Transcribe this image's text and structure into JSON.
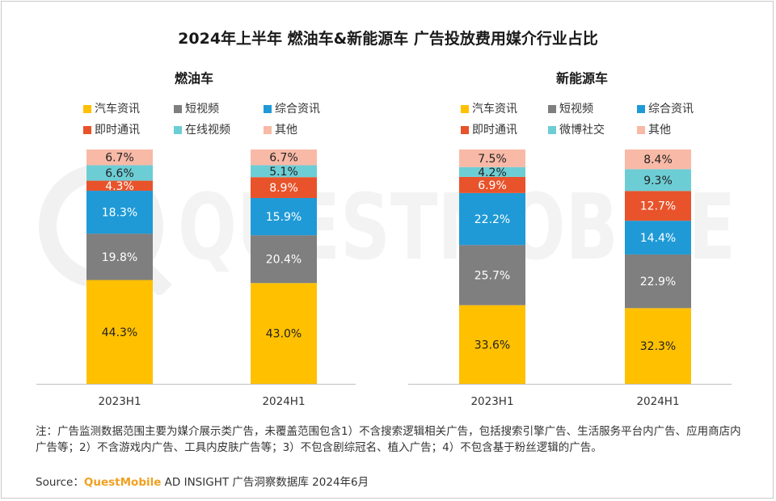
{
  "title": "2024年上半年 燃油车&新能源车 广告投放费用媒介行业占比",
  "watermark_text": "QUESTMOBILE",
  "colors": {
    "auto": "#ffc000",
    "short_video": "#7f7f7f",
    "news": "#1f9ad6",
    "im": "#e8532b",
    "online_video": "#6dcdd5",
    "weibo": "#6dcdd5",
    "other": "#f8b9a6"
  },
  "chart_data": [
    {
      "type": "bar",
      "stacked": true,
      "normalized": true,
      "title": "燃油车",
      "categories": [
        "2023H1",
        "2024H1"
      ],
      "legend_position": "top",
      "series": [
        {
          "name": "汽车资讯",
          "color_key": "auto",
          "values": [
            44.3,
            43.0
          ],
          "labels": [
            "44.3%",
            "43.0%"
          ]
        },
        {
          "name": "短视频",
          "color_key": "short_video",
          "values": [
            19.8,
            20.4
          ],
          "labels": [
            "19.8%",
            "20.4%"
          ]
        },
        {
          "name": "综合资讯",
          "color_key": "news",
          "values": [
            18.3,
            15.9
          ],
          "labels": [
            "18.3%",
            "15.9%"
          ]
        },
        {
          "name": "即时通讯",
          "color_key": "im",
          "values": [
            4.3,
            8.9
          ],
          "labels": [
            "4.3%",
            "8.9%"
          ]
        },
        {
          "name": "在线视频",
          "color_key": "online_video",
          "values": [
            6.6,
            5.1
          ],
          "labels": [
            "6.6%",
            "5.1%"
          ]
        },
        {
          "name": "其他",
          "color_key": "other",
          "values": [
            6.7,
            6.7
          ],
          "labels": [
            "6.7%",
            "6.7%"
          ]
        }
      ]
    },
    {
      "type": "bar",
      "stacked": true,
      "normalized": true,
      "title": "新能源车",
      "categories": [
        "2023H1",
        "2024H1"
      ],
      "legend_position": "top",
      "series": [
        {
          "name": "汽车资讯",
          "color_key": "auto",
          "values": [
            33.6,
            32.3
          ],
          "labels": [
            "33.6%",
            "32.3%"
          ]
        },
        {
          "name": "短视频",
          "color_key": "short_video",
          "values": [
            25.7,
            22.9
          ],
          "labels": [
            "25.7%",
            "22.9%"
          ]
        },
        {
          "name": "综合资讯",
          "color_key": "news",
          "values": [
            22.2,
            14.4
          ],
          "labels": [
            "22.2%",
            "14.4%"
          ]
        },
        {
          "name": "即时通讯",
          "color_key": "im",
          "values": [
            6.9,
            12.7
          ],
          "labels": [
            "6.9%",
            "12.7%"
          ]
        },
        {
          "name": "微博社交",
          "color_key": "weibo",
          "values": [
            4.2,
            9.3
          ],
          "labels": [
            "4.2%",
            "9.3%"
          ]
        },
        {
          "name": "其他",
          "color_key": "other",
          "values": [
            7.5,
            8.4
          ],
          "labels": [
            "7.5%",
            "8.4%"
          ]
        }
      ]
    }
  ],
  "note": "注：广告监测数据范围主要为媒介展示类广告，未覆盖范围包含1）不含搜索逻辑相关广告，包括搜索引擎广告、生活服务平台内广告、应用商店内广告等；2）不含游戏内广告、工具内皮肤广告等；3）不包含剧综冠名、植入广告；4）不包含基于粉丝逻辑的广告。",
  "source": {
    "label": "Source：",
    "brand": "QuestMobile",
    "text": " AD INSIGHT 广告洞察数据库 2024年6月"
  }
}
